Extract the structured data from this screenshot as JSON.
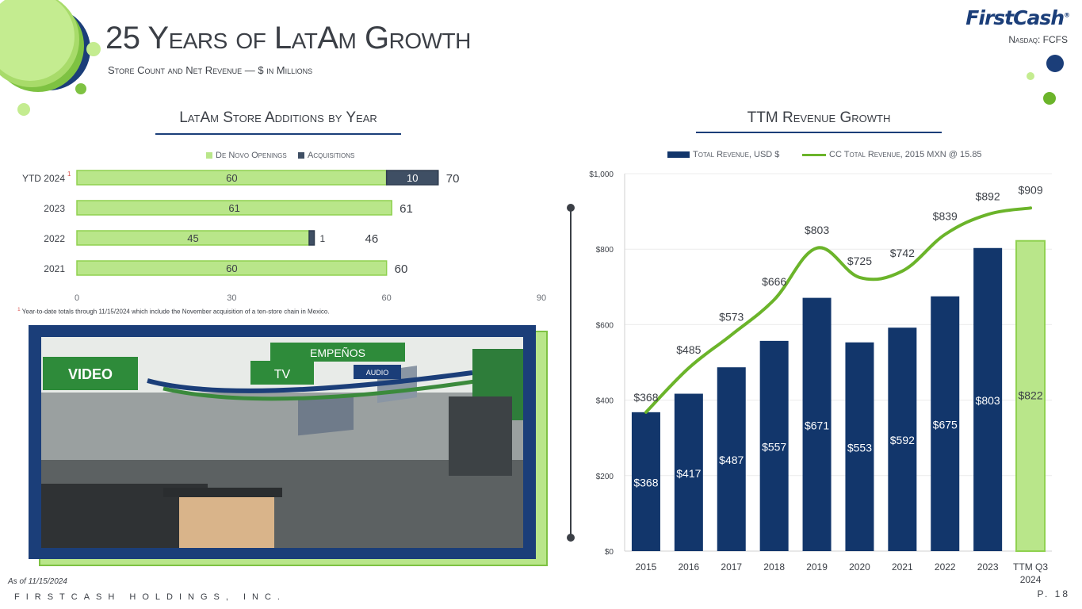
{
  "header": {
    "title": "25 Years of LatAm Growth",
    "subtitle": "Store Count and Net Revenue — $ in Millions",
    "logo": "FirstCash",
    "ticker": "Nasdaq: FCFS"
  },
  "left_panel": {
    "title": "LatAm Store Additions by Year",
    "footnote_marker": "1",
    "footnote": "Year-to-date totals through 11/15/2024 which include the November acquisition of a ten-store chain in Mexico."
  },
  "right_panel": {
    "title": "TTM Revenue Growth"
  },
  "photo": {
    "sign_video": "VIDEO",
    "sign_tv": "TV",
    "sign_empenos": "EMPEÑOS",
    "sign_audio": "AUDIO"
  },
  "footer": {
    "as_of": "As of 11/15/2024",
    "company": "FIRSTCASH HOLDINGS, INC.",
    "page": "P. 18"
  },
  "colors": {
    "navy": "#12366b",
    "light_green": "#b9e68a",
    "green_line": "#6bb42a",
    "slate": "#3f4f64"
  },
  "chart_data": [
    {
      "type": "bar",
      "orientation": "horizontal",
      "stacked": true,
      "title": "LatAm Store Additions by Year",
      "categories": [
        "YTD 2024",
        "2023",
        "2022",
        "2021"
      ],
      "category_markers": [
        "1",
        "",
        "",
        ""
      ],
      "series": [
        {
          "name": "De Novo Openings",
          "values": [
            60,
            61,
            45,
            60
          ],
          "color": "#b9e68a"
        },
        {
          "name": "Acquisitions",
          "values": [
            10,
            0,
            1,
            0
          ],
          "color": "#3f4f64"
        }
      ],
      "totals": [
        70,
        61,
        46,
        60
      ],
      "xlim": [
        0,
        90
      ],
      "xticks": [
        0,
        30,
        60,
        90
      ],
      "legend": "top-center",
      "grid": false
    },
    {
      "type": "bar+line",
      "title": "TTM Revenue Growth",
      "categories": [
        "2015",
        "2016",
        "2017",
        "2018",
        "2019",
        "2020",
        "2021",
        "2022",
        "2023",
        "TTM Q3 2024"
      ],
      "series": [
        {
          "name": "Total Revenue, USD $",
          "type": "bar",
          "values": [
            368,
            417,
            487,
            557,
            671,
            553,
            592,
            675,
            803,
            822
          ],
          "labels": [
            "$368",
            "$417",
            "$487",
            "$557",
            "$671",
            "$553",
            "$592",
            "$675",
            "$803",
            "$822"
          ]
        },
        {
          "name": "CC Total Revenue, 2015 MXN @ 15.85",
          "type": "line",
          "values": [
            368,
            485,
            573,
            666,
            803,
            725,
            742,
            839,
            892,
            909
          ],
          "labels": [
            "$368",
            "$485",
            "$573",
            "$666",
            "$803",
            "$725",
            "$742",
            "$839",
            "$892",
            "$909"
          ]
        }
      ],
      "highlight_last_bar": true,
      "ylim": [
        0,
        1000
      ],
      "yticks": [
        "$0",
        "$200",
        "$400",
        "$600",
        "$800",
        "$1,000"
      ],
      "ytick_values": [
        0,
        200,
        400,
        600,
        800,
        1000
      ],
      "legend": "top-center",
      "grid": true
    }
  ]
}
